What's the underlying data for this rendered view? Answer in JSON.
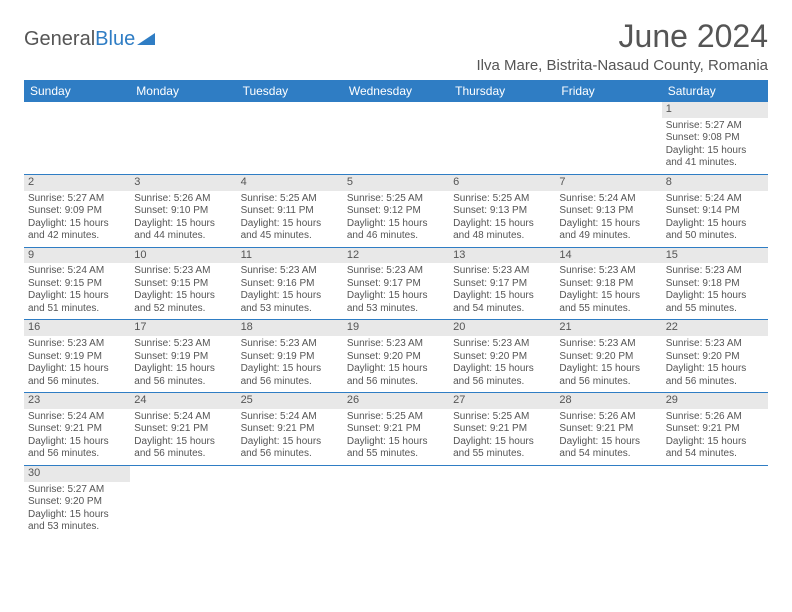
{
  "logo": {
    "part1": "General",
    "part2": "Blue"
  },
  "title": "June 2024",
  "location": "Ilva Mare, Bistrita-Nasaud County, Romania",
  "colors": {
    "brand_blue": "#2f7dc4",
    "header_text": "#ffffff",
    "body_text": "#555555",
    "daynum_bg": "#e8e8e8",
    "page_bg": "#ffffff"
  },
  "day_headers": [
    "Sunday",
    "Monday",
    "Tuesday",
    "Wednesday",
    "Thursday",
    "Friday",
    "Saturday"
  ],
  "weeks": [
    [
      null,
      null,
      null,
      null,
      null,
      null,
      {
        "n": "1",
        "sr": "Sunrise: 5:27 AM",
        "ss": "Sunset: 9:08 PM",
        "d1": "Daylight: 15 hours",
        "d2": "and 41 minutes."
      }
    ],
    [
      {
        "n": "2",
        "sr": "Sunrise: 5:27 AM",
        "ss": "Sunset: 9:09 PM",
        "d1": "Daylight: 15 hours",
        "d2": "and 42 minutes."
      },
      {
        "n": "3",
        "sr": "Sunrise: 5:26 AM",
        "ss": "Sunset: 9:10 PM",
        "d1": "Daylight: 15 hours",
        "d2": "and 44 minutes."
      },
      {
        "n": "4",
        "sr": "Sunrise: 5:25 AM",
        "ss": "Sunset: 9:11 PM",
        "d1": "Daylight: 15 hours",
        "d2": "and 45 minutes."
      },
      {
        "n": "5",
        "sr": "Sunrise: 5:25 AM",
        "ss": "Sunset: 9:12 PM",
        "d1": "Daylight: 15 hours",
        "d2": "and 46 minutes."
      },
      {
        "n": "6",
        "sr": "Sunrise: 5:25 AM",
        "ss": "Sunset: 9:13 PM",
        "d1": "Daylight: 15 hours",
        "d2": "and 48 minutes."
      },
      {
        "n": "7",
        "sr": "Sunrise: 5:24 AM",
        "ss": "Sunset: 9:13 PM",
        "d1": "Daylight: 15 hours",
        "d2": "and 49 minutes."
      },
      {
        "n": "8",
        "sr": "Sunrise: 5:24 AM",
        "ss": "Sunset: 9:14 PM",
        "d1": "Daylight: 15 hours",
        "d2": "and 50 minutes."
      }
    ],
    [
      {
        "n": "9",
        "sr": "Sunrise: 5:24 AM",
        "ss": "Sunset: 9:15 PM",
        "d1": "Daylight: 15 hours",
        "d2": "and 51 minutes."
      },
      {
        "n": "10",
        "sr": "Sunrise: 5:23 AM",
        "ss": "Sunset: 9:15 PM",
        "d1": "Daylight: 15 hours",
        "d2": "and 52 minutes."
      },
      {
        "n": "11",
        "sr": "Sunrise: 5:23 AM",
        "ss": "Sunset: 9:16 PM",
        "d1": "Daylight: 15 hours",
        "d2": "and 53 minutes."
      },
      {
        "n": "12",
        "sr": "Sunrise: 5:23 AM",
        "ss": "Sunset: 9:17 PM",
        "d1": "Daylight: 15 hours",
        "d2": "and 53 minutes."
      },
      {
        "n": "13",
        "sr": "Sunrise: 5:23 AM",
        "ss": "Sunset: 9:17 PM",
        "d1": "Daylight: 15 hours",
        "d2": "and 54 minutes."
      },
      {
        "n": "14",
        "sr": "Sunrise: 5:23 AM",
        "ss": "Sunset: 9:18 PM",
        "d1": "Daylight: 15 hours",
        "d2": "and 55 minutes."
      },
      {
        "n": "15",
        "sr": "Sunrise: 5:23 AM",
        "ss": "Sunset: 9:18 PM",
        "d1": "Daylight: 15 hours",
        "d2": "and 55 minutes."
      }
    ],
    [
      {
        "n": "16",
        "sr": "Sunrise: 5:23 AM",
        "ss": "Sunset: 9:19 PM",
        "d1": "Daylight: 15 hours",
        "d2": "and 56 minutes."
      },
      {
        "n": "17",
        "sr": "Sunrise: 5:23 AM",
        "ss": "Sunset: 9:19 PM",
        "d1": "Daylight: 15 hours",
        "d2": "and 56 minutes."
      },
      {
        "n": "18",
        "sr": "Sunrise: 5:23 AM",
        "ss": "Sunset: 9:19 PM",
        "d1": "Daylight: 15 hours",
        "d2": "and 56 minutes."
      },
      {
        "n": "19",
        "sr": "Sunrise: 5:23 AM",
        "ss": "Sunset: 9:20 PM",
        "d1": "Daylight: 15 hours",
        "d2": "and 56 minutes."
      },
      {
        "n": "20",
        "sr": "Sunrise: 5:23 AM",
        "ss": "Sunset: 9:20 PM",
        "d1": "Daylight: 15 hours",
        "d2": "and 56 minutes."
      },
      {
        "n": "21",
        "sr": "Sunrise: 5:23 AM",
        "ss": "Sunset: 9:20 PM",
        "d1": "Daylight: 15 hours",
        "d2": "and 56 minutes."
      },
      {
        "n": "22",
        "sr": "Sunrise: 5:23 AM",
        "ss": "Sunset: 9:20 PM",
        "d1": "Daylight: 15 hours",
        "d2": "and 56 minutes."
      }
    ],
    [
      {
        "n": "23",
        "sr": "Sunrise: 5:24 AM",
        "ss": "Sunset: 9:21 PM",
        "d1": "Daylight: 15 hours",
        "d2": "and 56 minutes."
      },
      {
        "n": "24",
        "sr": "Sunrise: 5:24 AM",
        "ss": "Sunset: 9:21 PM",
        "d1": "Daylight: 15 hours",
        "d2": "and 56 minutes."
      },
      {
        "n": "25",
        "sr": "Sunrise: 5:24 AM",
        "ss": "Sunset: 9:21 PM",
        "d1": "Daylight: 15 hours",
        "d2": "and 56 minutes."
      },
      {
        "n": "26",
        "sr": "Sunrise: 5:25 AM",
        "ss": "Sunset: 9:21 PM",
        "d1": "Daylight: 15 hours",
        "d2": "and 55 minutes."
      },
      {
        "n": "27",
        "sr": "Sunrise: 5:25 AM",
        "ss": "Sunset: 9:21 PM",
        "d1": "Daylight: 15 hours",
        "d2": "and 55 minutes."
      },
      {
        "n": "28",
        "sr": "Sunrise: 5:26 AM",
        "ss": "Sunset: 9:21 PM",
        "d1": "Daylight: 15 hours",
        "d2": "and 54 minutes."
      },
      {
        "n": "29",
        "sr": "Sunrise: 5:26 AM",
        "ss": "Sunset: 9:21 PM",
        "d1": "Daylight: 15 hours",
        "d2": "and 54 minutes."
      }
    ],
    [
      {
        "n": "30",
        "sr": "Sunrise: 5:27 AM",
        "ss": "Sunset: 9:20 PM",
        "d1": "Daylight: 15 hours",
        "d2": "and 53 minutes."
      },
      null,
      null,
      null,
      null,
      null,
      null
    ]
  ]
}
